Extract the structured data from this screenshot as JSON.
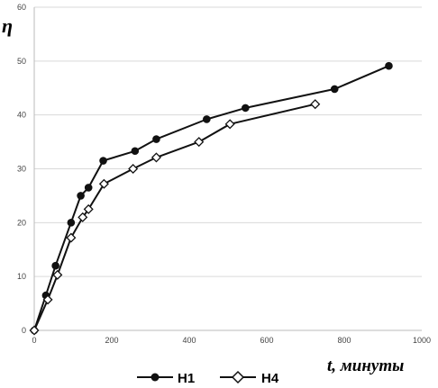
{
  "chart_data": {
    "type": "line",
    "title": "",
    "xlabel": "t, минуты",
    "ylabel": "η",
    "xlim": [
      0,
      1000
    ],
    "ylim": [
      0,
      60
    ],
    "x_ticks": [
      "0",
      "200",
      "400",
      "600",
      "800",
      "1000"
    ],
    "y_ticks": [
      "0",
      "10",
      "20",
      "30",
      "40",
      "50",
      "60"
    ],
    "grid": "horizontal",
    "legend_position": "bottom-left",
    "series": [
      {
        "name": "H1",
        "marker": "filled-circle",
        "color": "#111111",
        "points": [
          [
            0,
            0
          ],
          [
            30,
            6.5
          ],
          [
            55,
            12
          ],
          [
            95,
            20
          ],
          [
            120,
            25
          ],
          [
            140,
            26.5
          ],
          [
            178,
            31.5
          ],
          [
            260,
            33.3
          ],
          [
            315,
            35.5
          ],
          [
            445,
            39.2
          ],
          [
            545,
            41.3
          ],
          [
            775,
            44.8
          ],
          [
            915,
            49.1
          ]
        ]
      },
      {
        "name": "H4",
        "marker": "open-diamond",
        "color": "#111111",
        "points": [
          [
            0,
            0
          ],
          [
            35,
            5.7
          ],
          [
            60,
            10.3
          ],
          [
            95,
            17.2
          ],
          [
            125,
            21
          ],
          [
            140,
            22.5
          ],
          [
            180,
            27.2
          ],
          [
            255,
            30
          ],
          [
            315,
            32.1
          ],
          [
            425,
            35
          ],
          [
            505,
            38.3
          ],
          [
            725,
            42
          ]
        ]
      }
    ]
  }
}
